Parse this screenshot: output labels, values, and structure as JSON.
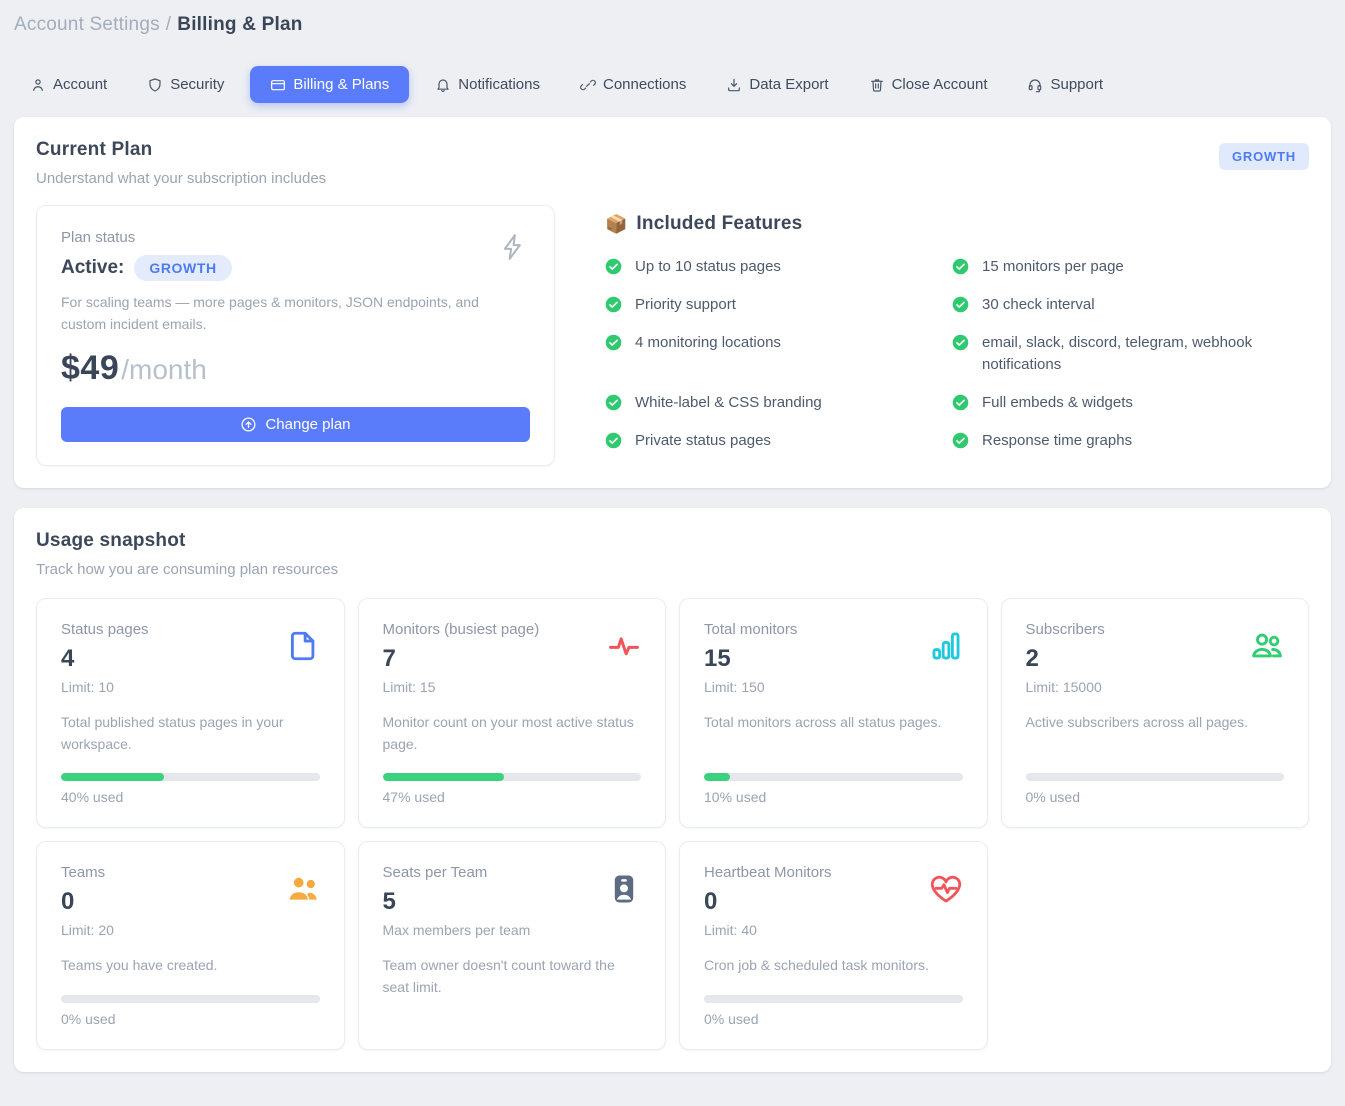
{
  "breadcrumb": {
    "section": "Account Settings",
    "separator": "/",
    "page": "Billing & Plan"
  },
  "tabs": [
    {
      "label": "Account",
      "icon": "user",
      "active": false
    },
    {
      "label": "Security",
      "icon": "shield",
      "active": false
    },
    {
      "label": "Billing & Plans",
      "icon": "credit-card",
      "active": true
    },
    {
      "label": "Notifications",
      "icon": "bell",
      "active": false
    },
    {
      "label": "Connections",
      "icon": "link",
      "active": false
    },
    {
      "label": "Data Export",
      "icon": "download",
      "active": false
    },
    {
      "label": "Close Account",
      "icon": "trash",
      "active": false
    },
    {
      "label": "Support",
      "icon": "headset",
      "active": false
    }
  ],
  "current_plan": {
    "title": "Current Plan",
    "subtitle": "Understand what your subscription includes",
    "plan_badge": "GROWTH",
    "status": {
      "label": "Plan status",
      "state": "Active:",
      "badge": "GROWTH",
      "description": "For scaling teams — more pages & monitors, JSON endpoints, and custom incident emails.",
      "price": "$49",
      "period": "/month",
      "button_label": "Change plan"
    },
    "features": {
      "emoji": "📦",
      "title": "Included Features",
      "items": [
        {
          "col": "left",
          "text": "Up to 10 status pages"
        },
        {
          "col": "right",
          "text": "15 monitors per page"
        },
        {
          "col": "left",
          "text": "Priority support"
        },
        {
          "col": "right",
          "text": "30 check interval"
        },
        {
          "col": "left",
          "text": "4 monitoring locations"
        },
        {
          "col": "right",
          "text": "email, slack, discord, telegram, webhook notifications"
        },
        {
          "col": "left",
          "text": "White-label & CSS branding"
        },
        {
          "col": "right",
          "text": "Full embeds & widgets"
        },
        {
          "col": "left",
          "text": "Private status pages"
        },
        {
          "col": "right",
          "text": "Response time graphs"
        }
      ]
    }
  },
  "usage": {
    "title": "Usage snapshot",
    "subtitle": "Track how you are consuming plan resources",
    "cards": [
      {
        "title": "Status pages",
        "value": "4",
        "limit": "Limit: 10",
        "icon": "file",
        "icon_color": "#4e7cf0",
        "description": "Total published status pages in your workspace.",
        "percent": 40,
        "percent_label": "40% used"
      },
      {
        "title": "Monitors (busiest page)",
        "value": "7",
        "limit": "Limit: 15",
        "icon": "pulse",
        "icon_color": "#f2545b",
        "description": "Monitor count on your most active status page.",
        "percent": 47,
        "percent_label": "47% used"
      },
      {
        "title": "Total monitors",
        "value": "15",
        "limit": "Limit: 150",
        "icon": "bar-chart",
        "icon_color": "#1fc8de",
        "description": "Total monitors across all status pages.",
        "percent": 10,
        "percent_label": "10% used"
      },
      {
        "title": "Subscribers",
        "value": "2",
        "limit": "Limit: 15000",
        "icon": "users-line",
        "icon_color": "#2fce72",
        "description": "Active subscribers across all pages.",
        "percent": 0,
        "percent_label": "0% used"
      },
      {
        "title": "Teams",
        "value": "0",
        "limit": "Limit: 20",
        "icon": "users-fill",
        "icon_color": "#f5a93f",
        "description": "Teams you have created.",
        "percent": 0,
        "percent_label": "0% used"
      },
      {
        "title": "Seats per Team",
        "value": "5",
        "limit": "Max members per team",
        "icon": "id-badge",
        "icon_color": "#5c6b80",
        "description": "Team owner doesn't count toward the seat limit.",
        "percent": null,
        "percent_label": null
      },
      {
        "title": "Heartbeat Monitors",
        "value": "0",
        "limit": "Limit: 40",
        "icon": "heart-pulse",
        "icon_color": "#f2545b",
        "description": "Cron job & scheduled task monitors.",
        "percent": 0,
        "percent_label": "0% used"
      }
    ]
  },
  "colors": {
    "accent_blue": "#5b7cfa",
    "badge_bg": "#e1e9fc",
    "badge_text": "#4d7bf3",
    "check_green": "#2fc96f",
    "progress_green": "#3bd27d"
  }
}
